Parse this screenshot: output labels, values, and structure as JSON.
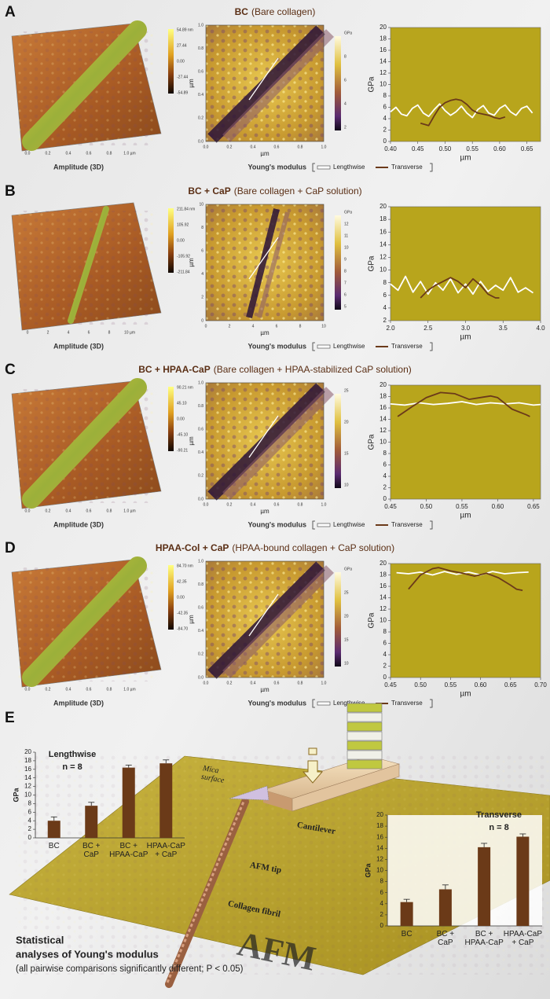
{
  "panels": [
    {
      "letter": "A",
      "title_bold": "BC",
      "title_rest": "(Bare collagen)",
      "amplitude_caption": "Amplitude (3D)",
      "amplitude_colorbar": [
        "54.89 nm",
        "27.44",
        "0.00",
        "-27.44",
        "-54.89"
      ],
      "amplitude_xticks": [
        "0.0",
        "0.2",
        "0.4",
        "0.6",
        "0.8",
        "1.0 µm"
      ],
      "modulus_caption": "Young's modulus",
      "modulus_ticks": [
        "0.0",
        "0.2",
        "0.4",
        "0.6",
        "0.8",
        "1.0"
      ],
      "modulus_unit": "µm",
      "modulus_colorbar": [
        "GPa",
        "8",
        "6",
        "4",
        "2"
      ]
    },
    {
      "letter": "B",
      "title_bold": "BC + CaP",
      "title_rest": "(Bare collagen + CaP solution)",
      "amplitude_caption": "Amplitude (3D)",
      "amplitude_colorbar": [
        "211.84 nm",
        "105.92",
        "0.00",
        "-105.92",
        "-211.84"
      ],
      "amplitude_xticks": [
        "0",
        "2",
        "4",
        "6",
        "8",
        "10 µm"
      ],
      "modulus_caption": "Young's modulus",
      "modulus_ticks": [
        "0",
        "2",
        "4",
        "6",
        "8",
        "10"
      ],
      "modulus_unit": "µm",
      "modulus_colorbar": [
        "GPa",
        "12",
        "11",
        "10",
        "9",
        "8",
        "7",
        "6",
        "5"
      ]
    },
    {
      "letter": "C",
      "title_bold": "BC + HPAA-CaP",
      "title_rest": "(Bare collagen + HPAA-stabilized CaP solution)",
      "amplitude_caption": "Amplitude (3D)",
      "amplitude_colorbar": [
        "90.21 nm",
        "45.10",
        "0.00",
        "-45.10",
        "-90.21"
      ],
      "amplitude_xticks": [
        "0.0",
        "0.2",
        "0.4",
        "0.6",
        "0.8",
        "1.0 µm"
      ],
      "modulus_caption": "Young's modulus",
      "modulus_ticks": [
        "0.0",
        "0.2",
        "0.4",
        "0.6",
        "0.8",
        "1.0"
      ],
      "modulus_unit": "µm",
      "modulus_colorbar": [
        "25",
        "20",
        "15",
        "10"
      ]
    },
    {
      "letter": "D",
      "title_bold": "HPAA-Col + CaP",
      "title_rest": "(HPAA-bound collagen + CaP solution)",
      "amplitude_caption": "Amplitude (3D)",
      "amplitude_colorbar": [
        "84.70 nm",
        "42.35",
        "0.00",
        "-42.35",
        "-84.70"
      ],
      "amplitude_xticks": [
        "0.0",
        "0.2",
        "0.4",
        "0.6",
        "0.8",
        "1.0 µm"
      ],
      "modulus_caption": "Young's modulus",
      "modulus_ticks": [
        "0.0",
        "0.2",
        "0.4",
        "0.6",
        "0.8",
        "1.0"
      ],
      "modulus_unit": "µm",
      "modulus_colorbar": [
        "GPa",
        "25",
        "20",
        "15",
        "10"
      ]
    }
  ],
  "panel_e": {
    "letter": "E",
    "schematic": {
      "mica": [
        "Mica",
        "surface"
      ],
      "cantilever": "Cantilever",
      "tip": "AFM tip",
      "fibril": "Collagen fibril",
      "afm": "AFM"
    },
    "summary": [
      "Statistical",
      "analyses of Young's modulus"
    ],
    "note": "(all pairwise comparisons significantly different; P < 0.05)"
  },
  "chart_data": [
    {
      "type": "line",
      "ylabel": "GPa",
      "xlabel": "µm",
      "background": "#b8a51c",
      "xlim": [
        0.4,
        0.675
      ],
      "ylim": [
        0,
        20
      ],
      "xticks": [
        {
          "value": 0.4,
          "label": "0.40"
        },
        0.45,
        {
          "value": 0.5,
          "label": "0.50"
        },
        0.55,
        {
          "value": 0.6,
          "label": "0.60"
        },
        0.65
      ],
      "yticks": [
        0,
        2,
        4,
        6,
        8,
        10,
        12,
        14,
        16,
        18,
        20
      ],
      "series": [
        {
          "name": "Lengthwise",
          "color": "#ffffff",
          "x": [
            0.4,
            0.41,
            0.42,
            0.43,
            0.44,
            0.45,
            0.46,
            0.47,
            0.48,
            0.49,
            0.5,
            0.51,
            0.52,
            0.53,
            0.54,
            0.55,
            0.56,
            0.57,
            0.58,
            0.59,
            0.6,
            0.61,
            0.62,
            0.63,
            0.64,
            0.65,
            0.66
          ],
          "values": [
            5.2,
            6.0,
            4.8,
            4.5,
            5.8,
            6.4,
            5.0,
            4.4,
            5.6,
            6.6,
            5.4,
            4.6,
            5.2,
            6.2,
            5.0,
            4.2,
            5.6,
            6.3,
            5.0,
            4.6,
            5.8,
            6.4,
            5.2,
            4.6,
            5.8,
            6.2,
            5.0
          ]
        },
        {
          "name": "Transverse",
          "color": "#6b3a1a",
          "x": [
            0.455,
            0.47,
            0.48,
            0.49,
            0.5,
            0.51,
            0.52,
            0.53,
            0.54,
            0.55,
            0.56,
            0.57,
            0.58,
            0.59,
            0.6,
            0.61
          ],
          "values": [
            3.2,
            2.8,
            4.5,
            6.0,
            6.8,
            7.2,
            7.4,
            7.2,
            6.5,
            5.5,
            5.0,
            4.8,
            4.6,
            4.2,
            4.0,
            4.3
          ]
        }
      ]
    },
    {
      "type": "line",
      "ylabel": "GPa",
      "xlabel": "µm",
      "background": "#b8a51c",
      "xlim": [
        2,
        4
      ],
      "ylim": [
        2,
        20
      ],
      "xticks": [
        {
          "value": 2,
          "label": "2.0"
        },
        2.5,
        {
          "value": 3,
          "label": "3.0"
        },
        3.5,
        {
          "value": 4,
          "label": "4.0"
        }
      ],
      "yticks": [
        2,
        4,
        6,
        8,
        10,
        12,
        14,
        16,
        18,
        20
      ],
      "series": [
        {
          "name": "Lengthwise",
          "color": "#ffffff",
          "x": [
            2.0,
            2.1,
            2.2,
            2.3,
            2.4,
            2.5,
            2.6,
            2.7,
            2.8,
            2.9,
            3.0,
            3.1,
            3.2,
            3.3,
            3.4,
            3.5,
            3.6,
            3.7,
            3.8,
            3.9
          ],
          "values": [
            7.8,
            6.8,
            9.0,
            6.5,
            8.2,
            6.2,
            8.0,
            6.8,
            8.6,
            6.4,
            7.8,
            6.2,
            8.2,
            6.6,
            7.6,
            6.8,
            8.8,
            6.5,
            7.2,
            6.4
          ]
        },
        {
          "name": "Transverse",
          "color": "#6b3a1a",
          "x": [
            2.4,
            2.5,
            2.6,
            2.7,
            2.8,
            2.9,
            3.0,
            3.1,
            3.2,
            3.3,
            3.4,
            3.45
          ],
          "values": [
            5.6,
            6.8,
            7.6,
            8.2,
            8.8,
            8.2,
            7.2,
            8.6,
            7.6,
            6.2,
            5.6,
            5.6
          ]
        }
      ]
    },
    {
      "type": "line",
      "ylabel": "GPa",
      "xlabel": "µm",
      "background": "#b8a51c",
      "xlim": [
        0.45,
        0.66
      ],
      "ylim": [
        0,
        20
      ],
      "xticks": [
        0.45,
        {
          "value": 0.5,
          "label": "0.50"
        },
        0.55,
        {
          "value": 0.6,
          "label": "0.60"
        },
        0.65
      ],
      "yticks": [
        0,
        2,
        4,
        6,
        8,
        10,
        12,
        14,
        16,
        18,
        20
      ],
      "series": [
        {
          "name": "Lengthwise",
          "color": "#ffffff",
          "x": [
            0.45,
            0.47,
            0.49,
            0.51,
            0.53,
            0.55,
            0.57,
            0.59,
            0.61,
            0.63,
            0.65,
            0.66
          ],
          "values": [
            16.7,
            16.5,
            16.9,
            16.6,
            16.8,
            17.1,
            16.6,
            16.9,
            16.7,
            16.9,
            16.5,
            16.6
          ]
        },
        {
          "name": "Transverse",
          "color": "#6b3a1a",
          "x": [
            0.46,
            0.48,
            0.5,
            0.52,
            0.54,
            0.56,
            0.58,
            0.59,
            0.6,
            0.62,
            0.64,
            0.645
          ],
          "values": [
            14.5,
            16.2,
            17.8,
            18.7,
            18.5,
            17.5,
            17.9,
            18.1,
            17.8,
            15.8,
            14.8,
            14.5
          ]
        }
      ]
    },
    {
      "type": "line",
      "ylabel": "GPa",
      "xlabel": "µm",
      "background": "#b8a51c",
      "xlim": [
        0.45,
        0.7
      ],
      "ylim": [
        0,
        20
      ],
      "xticks": [
        0.45,
        {
          "value": 0.5,
          "label": "0.50"
        },
        0.55,
        {
          "value": 0.6,
          "label": "0.60"
        },
        0.65,
        {
          "value": 0.7,
          "label": "0.70"
        }
      ],
      "yticks": [
        0,
        2,
        4,
        6,
        8,
        10,
        12,
        14,
        16,
        18,
        20
      ],
      "series": [
        {
          "name": "Lengthwise",
          "color": "#ffffff",
          "x": [
            0.46,
            0.48,
            0.5,
            0.52,
            0.54,
            0.56,
            0.58,
            0.6,
            0.62,
            0.64,
            0.66,
            0.68
          ],
          "values": [
            18.4,
            18.2,
            18.5,
            18.0,
            18.6,
            18.1,
            18.5,
            18.0,
            18.6,
            18.2,
            18.4,
            18.5
          ]
        },
        {
          "name": "Transverse",
          "color": "#6b3a1a",
          "x": [
            0.48,
            0.5,
            0.52,
            0.53,
            0.55,
            0.57,
            0.59,
            0.61,
            0.63,
            0.65,
            0.66,
            0.67
          ],
          "values": [
            15.5,
            18.0,
            19.1,
            19.3,
            18.7,
            18.3,
            17.8,
            18.3,
            17.5,
            16.2,
            15.5,
            15.3
          ]
        }
      ]
    },
    {
      "type": "bar",
      "title": "Lengthwise",
      "subtitle": "n = 8",
      "ylabel": "GPa",
      "color": "#6b3a18",
      "categories": [
        [
          "BC"
        ],
        [
          "BC +",
          "CaP"
        ],
        [
          "BC +",
          "HPAA-CaP"
        ],
        [
          "HPAA-CaP",
          "+ CaP"
        ]
      ],
      "values": [
        4.0,
        7.5,
        16.4,
        17.4
      ],
      "errors": [
        0.9,
        0.8,
        0.6,
        0.8
      ],
      "ylim": [
        0,
        20
      ],
      "yticks": [
        0,
        2,
        4,
        6,
        8,
        10,
        12,
        14,
        16,
        18,
        20
      ]
    },
    {
      "type": "bar",
      "title": "Transverse",
      "subtitle": "n = 8",
      "ylabel": "GPa",
      "color": "#6b3a18",
      "categories": [
        [
          "BC"
        ],
        [
          "BC +",
          "CaP"
        ],
        [
          "BC +",
          "HPAA-CaP"
        ],
        [
          "HPAA-CaP",
          "+ CaP"
        ]
      ],
      "values": [
        4.3,
        6.6,
        14.2,
        16.1
      ],
      "errors": [
        0.5,
        0.8,
        0.7,
        0.5
      ],
      "ylim": [
        0,
        20
      ],
      "yticks": [
        0,
        2,
        4,
        6,
        8,
        10,
        12,
        14,
        16,
        18,
        20
      ]
    }
  ]
}
